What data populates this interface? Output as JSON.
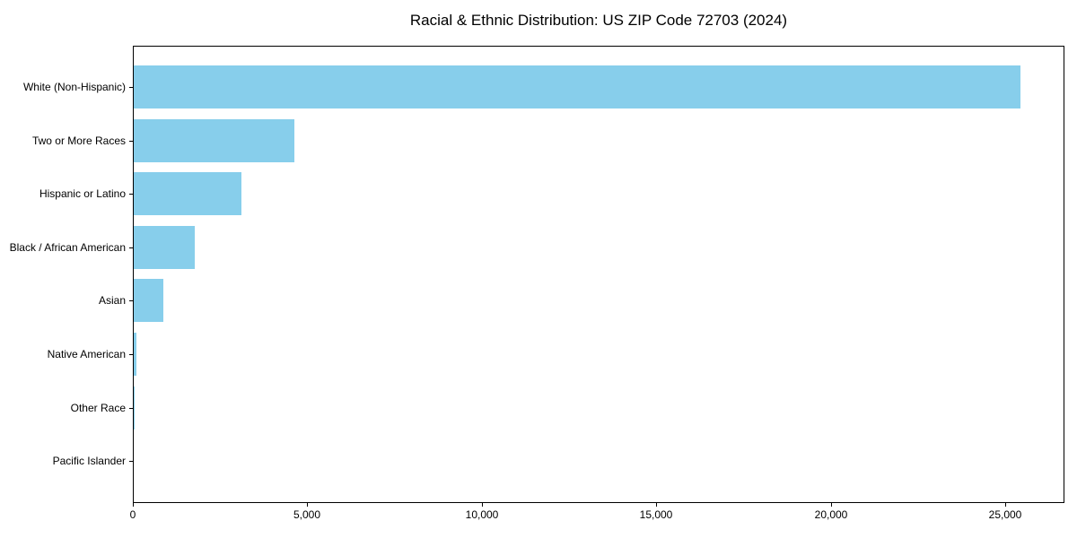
{
  "chart_data": {
    "type": "bar",
    "orientation": "horizontal",
    "title": "Racial & Ethnic Distribution: US ZIP Code 72703 (2024)",
    "categories": [
      "White (Non-Hispanic)",
      "Two or More Races",
      "Hispanic or Latino",
      "Black / African American",
      "Asian",
      "Native American",
      "Other Race",
      "Pacific Islander"
    ],
    "values": [
      25400,
      4600,
      3080,
      1760,
      860,
      90,
      30,
      0
    ],
    "xlabel": "",
    "ylabel": "",
    "xlim": [
      0,
      26670
    ],
    "x_ticks": [
      0,
      5000,
      10000,
      15000,
      20000,
      25000
    ],
    "x_tick_labels": [
      "0",
      "5,000",
      "10,000",
      "15,000",
      "20,000",
      "25,000"
    ],
    "bar_color": "#87CEEB",
    "frame_color": "#000000",
    "background_color": "#FFFFFF",
    "grid": false,
    "legend": null
  }
}
